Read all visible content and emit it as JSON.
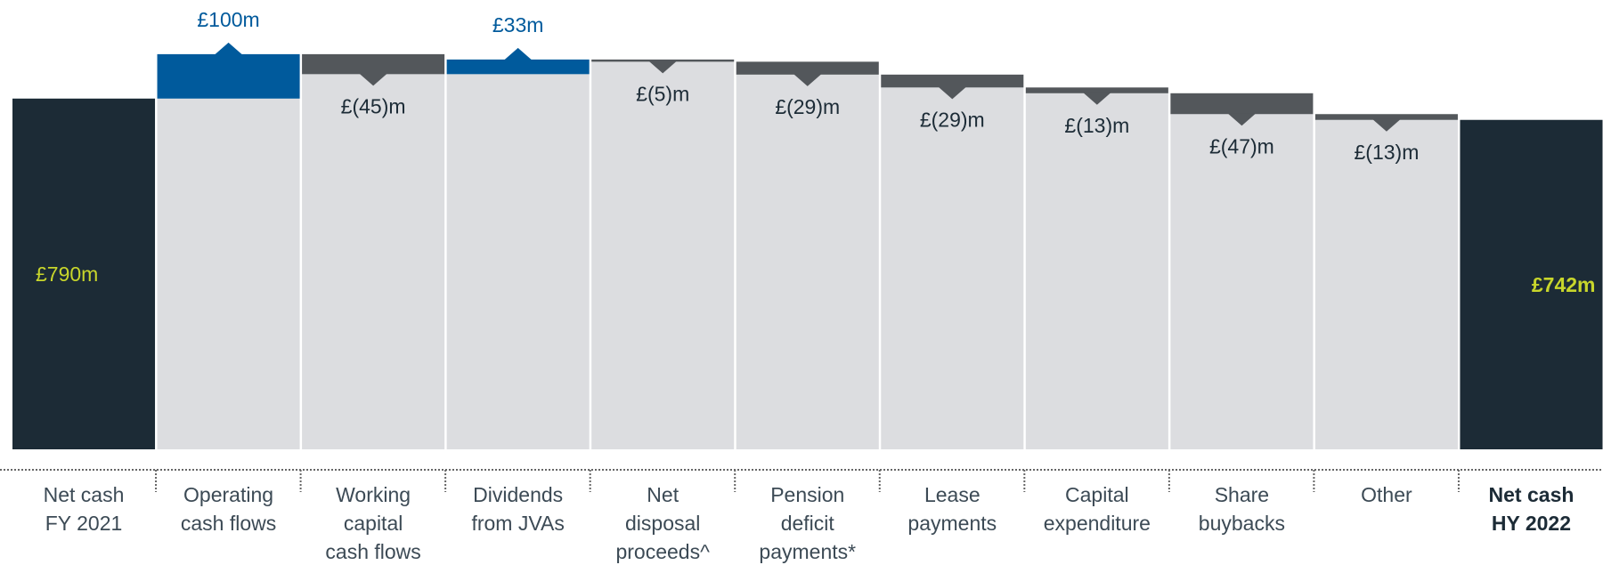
{
  "chart_data": {
    "type": "waterfall",
    "categories": [
      [
        "Net cash",
        "FY 2021"
      ],
      [
        "Operating",
        "cash flows"
      ],
      [
        "Working",
        "capital",
        "cash flows"
      ],
      [
        "Dividends",
        "from JVAs"
      ],
      [
        "Net",
        "disposal",
        "proceeds^"
      ],
      [
        "Pension",
        "deficit",
        "payments*"
      ],
      [
        "Lease",
        "payments"
      ],
      [
        "Capital",
        "expenditure"
      ],
      [
        "Share",
        "buybacks"
      ],
      [
        "Other"
      ],
      [
        "Net cash",
        "HY 2022"
      ]
    ],
    "values": [
      790,
      100,
      -45,
      33,
      -5,
      -29,
      -29,
      -13,
      -47,
      -13,
      742
    ],
    "value_labels": [
      "£790m",
      "£100m",
      "£(45)m",
      "£33m",
      "£(5)m",
      "£(29)m",
      "£(29)m",
      "£(13)m",
      "£(47)m",
      "£(13)m",
      "£742m"
    ],
    "totals": [
      0,
      10
    ],
    "total_color": "#1c2b36",
    "increase_color": "#005a9c",
    "decrease_color": "#53575b",
    "total_label_color": "#c8d62b",
    "ylim": [
      0,
      1000
    ]
  }
}
